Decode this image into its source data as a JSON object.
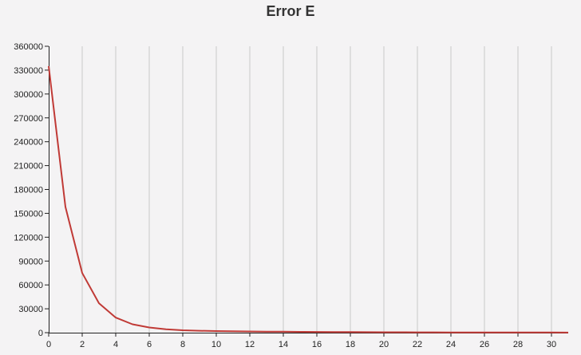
{
  "chart_data": {
    "type": "line",
    "title": "Error E",
    "xlabel": "",
    "ylabel": "",
    "xlim": [
      0,
      31
    ],
    "ylim": [
      0,
      360000
    ],
    "x_ticks": [
      0,
      2,
      4,
      6,
      8,
      10,
      12,
      14,
      16,
      18,
      20,
      22,
      24,
      26,
      28,
      30
    ],
    "y_ticks": [
      0,
      30000,
      60000,
      90000,
      120000,
      150000,
      180000,
      210000,
      240000,
      270000,
      300000,
      330000,
      360000
    ],
    "grid": "vertical",
    "colors": {
      "line": "#c03a36",
      "grid": "#c8c8c8",
      "axis": "#222222",
      "background": "#f4f3f4"
    },
    "series": [
      {
        "x": [
          0,
          1,
          2,
          3,
          4,
          5,
          6,
          7,
          8,
          9,
          10,
          11,
          12,
          13,
          14,
          15,
          16,
          17,
          18,
          19,
          20,
          21,
          22,
          23,
          24,
          25,
          26,
          27,
          28,
          29,
          30,
          31
        ],
        "values": [
          335000,
          158000,
          75000,
          37000,
          19000,
          10500,
          6500,
          4200,
          3000,
          2400,
          2000,
          1700,
          1500,
          1300,
          1200,
          1050,
          950,
          850,
          750,
          650,
          550,
          500,
          450,
          400,
          350,
          300,
          260,
          230,
          200,
          180,
          160,
          150
        ]
      }
    ]
  }
}
